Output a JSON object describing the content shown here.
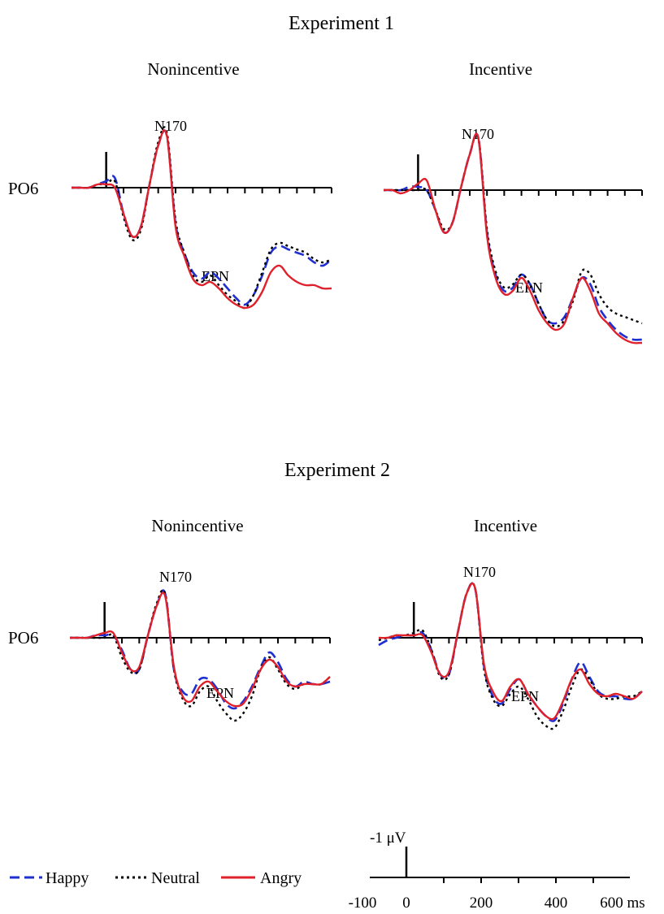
{
  "experiments": [
    {
      "title": "Experiment 1",
      "panels": [
        {
          "condition": "Nonincentive",
          "channel": "PO6",
          "peak_label_1": "N170",
          "peak_label_2": "EPN"
        },
        {
          "condition": "Incentive",
          "channel": "",
          "peak_label_1": "N170",
          "peak_label_2": "EPN"
        }
      ]
    },
    {
      "title": "Experiment 2",
      "panels": [
        {
          "condition": "Nonincentive",
          "channel": "PO6",
          "peak_label_1": "N170",
          "peak_label_2": "EPN"
        },
        {
          "condition": "Incentive",
          "channel": "",
          "peak_label_1": "N170",
          "peak_label_2": "EPN"
        }
      ]
    }
  ],
  "legend": [
    {
      "label": "Happy",
      "color": "#1f2fd0",
      "style": "long-dash"
    },
    {
      "label": "Neutral",
      "color": "#000000",
      "style": "dotted"
    },
    {
      "label": "Angry",
      "color": "#e0202a",
      "style": "solid"
    }
  ],
  "scale_bar": {
    "amplitude_label": "-1 μV",
    "tick_labels": [
      "-100",
      "0",
      "200",
      "400",
      "600 ms"
    ]
  },
  "chart_data": {
    "type": "line",
    "x_unit": "ms",
    "y_unit": "μV",
    "y_axis_note": "negative plotted up",
    "xlim": [
      -100,
      650
    ],
    "panels": [
      {
        "experiment": "Experiment 1",
        "condition": "Nonincentive",
        "x": [
          -100,
          -75,
          -50,
          -25,
          0,
          25,
          50,
          75,
          100,
          125,
          150,
          175,
          200,
          225,
          250,
          275,
          300,
          325,
          350,
          375,
          400,
          425,
          450,
          475,
          500,
          525,
          550,
          575,
          600,
          625,
          650
        ],
        "series": [
          {
            "name": "Happy",
            "values": [
              0,
              0,
              0,
              -0.1,
              -0.2,
              -0.3,
              0.8,
              1.5,
              1.2,
              -0.1,
              -1.3,
              -1.6,
              1.1,
              2.0,
              2.6,
              2.8,
              2.6,
              2.8,
              3.1,
              3.4,
              3.6,
              3.3,
              2.7,
              2.0,
              1.8,
              1.9,
              2.0,
              2.1,
              2.3,
              2.4,
              2.2
            ]
          },
          {
            "name": "Neutral",
            "values": [
              0,
              0,
              0,
              -0.1,
              -0.1,
              -0.2,
              0.9,
              1.6,
              1.3,
              -0.1,
              -1.4,
              -1.7,
              1.0,
              2.0,
              2.7,
              2.9,
              2.7,
              3.0,
              3.3,
              3.5,
              3.7,
              3.3,
              2.6,
              1.9,
              1.7,
              1.8,
              1.9,
              2.0,
              2.2,
              2.3,
              2.2
            ]
          },
          {
            "name": "Angry",
            "values": [
              0,
              0,
              0,
              -0.1,
              -0.1,
              0,
              0.8,
              1.5,
              1.2,
              -0.1,
              -1.3,
              -1.6,
              1.2,
              2.1,
              2.8,
              3.0,
              2.9,
              3.1,
              3.4,
              3.6,
              3.7,
              3.6,
              3.2,
              2.6,
              2.4,
              2.7,
              2.9,
              3.0,
              3.0,
              3.1,
              3.1
            ]
          }
        ]
      },
      {
        "experiment": "Experiment 1",
        "condition": "Incentive",
        "x": [
          -100,
          -75,
          -50,
          -25,
          0,
          25,
          50,
          75,
          100,
          125,
          150,
          175,
          200,
          225,
          250,
          275,
          300,
          325,
          350,
          375,
          400,
          425,
          450,
          475,
          500,
          525,
          550,
          575,
          600,
          625,
          650
        ],
        "series": [
          {
            "name": "Happy",
            "values": [
              0,
              0,
              0,
              -0.1,
              -0.1,
              0,
              0.6,
              1.3,
              1.0,
              -0.1,
              -1.1,
              -1.6,
              1.3,
              2.6,
              3.1,
              3.0,
              2.6,
              2.9,
              3.5,
              4.0,
              4.1,
              3.9,
              3.3,
              2.7,
              2.9,
              3.6,
              4.0,
              4.3,
              4.5,
              4.6,
              4.6
            ]
          },
          {
            "name": "Neutral",
            "values": [
              0,
              0,
              0,
              0,
              0,
              0,
              0.6,
              1.2,
              1.0,
              -0.1,
              -1.1,
              -1.6,
              1.2,
              2.5,
              3.0,
              2.9,
              2.6,
              2.9,
              3.5,
              4.0,
              4.2,
              4.0,
              3.4,
              2.5,
              2.6,
              3.2,
              3.6,
              3.8,
              3.9,
              4.0,
              4.1
            ]
          },
          {
            "name": "Angry",
            "values": [
              0,
              0,
              0.1,
              0,
              -0.2,
              -0.3,
              0.6,
              1.3,
              1.0,
              -0.1,
              -1.1,
              -1.6,
              1.4,
              2.7,
              3.2,
              3.1,
              2.7,
              3.1,
              3.7,
              4.1,
              4.3,
              4.1,
              3.3,
              2.7,
              3.1,
              3.8,
              4.1,
              4.4,
              4.6,
              4.7,
              4.7
            ]
          }
        ]
      },
      {
        "experiment": "Experiment 2",
        "condition": "Nonincentive",
        "x": [
          -100,
          -75,
          -50,
          -25,
          0,
          25,
          50,
          75,
          100,
          125,
          150,
          175,
          200,
          225,
          250,
          275,
          300,
          325,
          350,
          375,
          400,
          425,
          450,
          475,
          500,
          525,
          550,
          575,
          600,
          625,
          650
        ],
        "series": [
          {
            "name": "Happy",
            "values": [
              0,
              0,
              0,
              -0.1,
              -0.1,
              -0.1,
              0.5,
              1.3,
              1.3,
              -0.1,
              -1.3,
              -1.8,
              1.3,
              2.2,
              2.3,
              1.7,
              1.7,
              2.1,
              2.7,
              2.9,
              2.6,
              2.0,
              1.2,
              0.6,
              1.0,
              1.7,
              2.0,
              1.8,
              1.9,
              1.9,
              1.8
            ]
          },
          {
            "name": "Neutral",
            "values": [
              0,
              0,
              0,
              0,
              0,
              -0.1,
              0.8,
              1.4,
              1.3,
              -0.1,
              -1.4,
              -1.8,
              1.3,
              2.5,
              2.8,
              2.2,
              2.0,
              2.6,
              3.1,
              3.4,
              3.1,
              2.4,
              1.3,
              0.8,
              1.3,
              1.9,
              2.1,
              1.9,
              1.9,
              1.9,
              1.6
            ]
          },
          {
            "name": "Angry",
            "values": [
              0,
              0,
              0,
              -0.1,
              -0.2,
              -0.2,
              0.6,
              1.3,
              1.2,
              -0.1,
              -1.3,
              -1.7,
              1.2,
              2.4,
              2.6,
              2.0,
              1.8,
              2.2,
              2.6,
              2.8,
              2.7,
              2.1,
              1.3,
              0.9,
              1.2,
              1.8,
              2.0,
              1.9,
              1.9,
              1.9,
              1.6
            ]
          }
        ]
      },
      {
        "experiment": "Experiment 2",
        "condition": "Incentive",
        "x": [
          -100,
          -75,
          -50,
          -25,
          0,
          25,
          50,
          75,
          100,
          125,
          150,
          175,
          200,
          225,
          250,
          275,
          300,
          325,
          350,
          375,
          400,
          425,
          450,
          475,
          500,
          525,
          550,
          575,
          600,
          625,
          650
        ],
        "series": [
          {
            "name": "Happy",
            "values": [
              0.3,
              0.1,
              0,
              -0.1,
              -0.1,
              -0.2,
              0.5,
              1.5,
              1.5,
              -0.2,
              -1.8,
              -2.0,
              1.2,
              2.4,
              2.7,
              2.1,
              1.7,
              2.3,
              2.8,
              3.2,
              3.4,
              2.7,
              1.7,
              1.0,
              1.6,
              2.2,
              2.4,
              2.4,
              2.5,
              2.5,
              2.2
            ]
          },
          {
            "name": "Neutral",
            "values": [
              0.1,
              0,
              -0.1,
              -0.1,
              -0.2,
              -0.3,
              0.5,
              1.6,
              1.5,
              -0.2,
              -1.8,
              -2.0,
              1.3,
              2.5,
              2.8,
              2.3,
              2.0,
              2.5,
              3.2,
              3.6,
              3.7,
              3.0,
              2.0,
              1.3,
              1.7,
              2.3,
              2.5,
              2.5,
              2.4,
              2.4,
              2.2
            ]
          },
          {
            "name": "Angry",
            "values": [
              0,
              0,
              -0.1,
              -0.1,
              -0.1,
              -0.1,
              0.6,
              1.5,
              1.4,
              -0.2,
              -1.8,
              -2.0,
              1.1,
              2.2,
              2.6,
              2.0,
              1.7,
              2.3,
              2.8,
              3.2,
              3.3,
              2.6,
              1.7,
              1.3,
              1.9,
              2.3,
              2.4,
              2.3,
              2.4,
              2.5,
              2.2
            ]
          }
        ]
      }
    ]
  }
}
